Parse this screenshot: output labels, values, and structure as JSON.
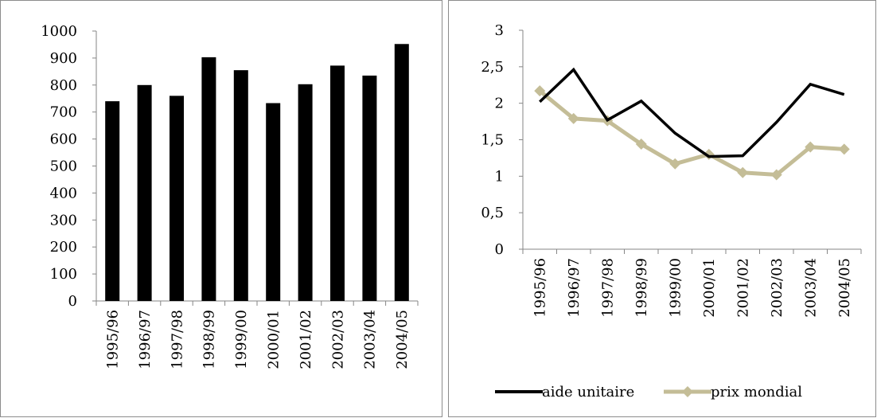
{
  "chart_data": [
    {
      "type": "bar",
      "categories": [
        "1995/96",
        "1996/97",
        "1997/98",
        "1998/99",
        "1999/00",
        "2000/01",
        "2001/02",
        "2002/03",
        "2003/04",
        "2004/05"
      ],
      "values": [
        740,
        800,
        760,
        903,
        855,
        733,
        803,
        872,
        835,
        952
      ],
      "ylim": [
        0,
        1000
      ],
      "yticks": [
        0,
        100,
        200,
        300,
        400,
        500,
        600,
        700,
        800,
        900,
        1000
      ],
      "ytick_labels": [
        "0",
        "100",
        "200",
        "300",
        "400",
        "500",
        "600",
        "700",
        "800",
        "900",
        "1000"
      ],
      "grid": false,
      "bar_color": "#000000"
    },
    {
      "type": "line",
      "categories": [
        "1995/96",
        "1996/97",
        "1997/98",
        "1998/99",
        "1999/00",
        "2000/01",
        "2001/02",
        "2002/03",
        "2003/04",
        "2004/05"
      ],
      "ylim": [
        0,
        3
      ],
      "yticks": [
        0,
        0.5,
        1,
        1.5,
        2,
        2.5,
        3
      ],
      "ytick_labels": [
        "0",
        "0,5",
        "1",
        "1,5",
        "2",
        "2,5",
        "3"
      ],
      "grid": false,
      "legend_position": "bottom",
      "series": [
        {
          "name": "aide unitaire",
          "color": "#000000",
          "marker": "none",
          "values": [
            2.02,
            2.46,
            1.77,
            2.03,
            1.59,
            1.27,
            1.28,
            1.74,
            2.26,
            2.12
          ]
        },
        {
          "name": "prix mondial",
          "color": "#c4bd97",
          "marker": "diamond",
          "values": [
            2.17,
            1.79,
            1.76,
            1.44,
            1.17,
            1.3,
            1.05,
            1.02,
            1.4,
            1.37
          ]
        }
      ]
    }
  ]
}
